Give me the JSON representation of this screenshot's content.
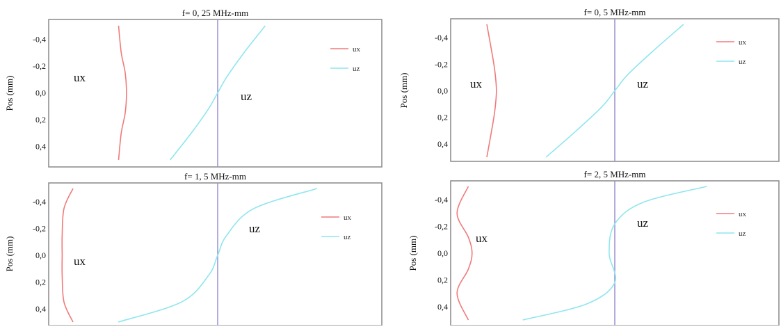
{
  "figure": {
    "colors": {
      "ux": "#f07a7a",
      "uz": "#8ee6ee",
      "zero_line": "#9a8fd0",
      "frame": "#888888"
    }
  },
  "chart_data": [
    {
      "type": "line",
      "title": "f= 0, 25 MHz-mm",
      "xlabel": "",
      "ylabel": "Pos (mm)",
      "ylim": [
        -0.5,
        0.5
      ],
      "y_inverted": true,
      "y_ticks": [
        -0.4,
        -0.2,
        0.0,
        0.2,
        0.4
      ],
      "y_tick_labels": [
        "-0,4",
        "-0,2",
        "0,0",
        "0,2",
        "0,4"
      ],
      "xlim": [
        -1.0,
        1.0
      ],
      "grid": false,
      "legend": "top-right",
      "annotations": [
        "ux",
        "uz"
      ],
      "series": [
        {
          "name": "ux",
          "x": [
            -0.75,
            -0.73,
            -0.7,
            -0.69,
            -0.7,
            -0.73,
            -0.75
          ],
          "y": [
            -0.5,
            -0.3,
            -0.15,
            0.0,
            0.15,
            0.3,
            0.5
          ]
        },
        {
          "name": "uz",
          "x": [
            -0.36,
            -0.2,
            -0.07,
            0.0,
            0.07,
            0.2,
            0.36
          ],
          "y": [
            0.5,
            0.3,
            0.12,
            0.0,
            -0.12,
            -0.3,
            -0.5
          ]
        }
      ]
    },
    {
      "type": "line",
      "title": "f= 0, 5 MHz-mm",
      "xlabel": "",
      "ylabel": "Pos (mm)",
      "ylim": [
        -0.5,
        0.5
      ],
      "y_inverted": true,
      "y_ticks": [
        -0.4,
        -0.2,
        0.0,
        0.2,
        0.4
      ],
      "y_tick_labels": [
        "-0,4",
        "-0,2",
        "0,0",
        "0,2",
        "0,4"
      ],
      "xlim": [
        -1.0,
        1.0
      ],
      "grid": false,
      "legend": "top-right",
      "annotations": [
        "ux",
        "uz"
      ],
      "series": [
        {
          "name": "ux",
          "x": [
            -0.8,
            -0.77,
            -0.75,
            -0.74,
            -0.75,
            -0.77,
            -0.8
          ],
          "y": [
            -0.5,
            -0.3,
            -0.15,
            0.0,
            0.15,
            0.3,
            0.5
          ]
        },
        {
          "name": "uz",
          "x": [
            -0.43,
            -0.24,
            -0.08,
            0.0,
            0.08,
            0.24,
            0.43
          ],
          "y": [
            0.5,
            0.3,
            0.12,
            0.0,
            -0.12,
            -0.3,
            -0.5
          ]
        }
      ]
    },
    {
      "type": "line",
      "title": "f= 1, 5 MHz-mm",
      "xlabel": "",
      "ylabel": "Pos (mm)",
      "ylim": [
        -0.5,
        0.5
      ],
      "y_inverted": true,
      "y_ticks": [
        -0.4,
        -0.2,
        0.0,
        0.2,
        0.4
      ],
      "y_tick_labels": [
        "-0,4",
        "-0,2",
        "0,0",
        "0,2",
        "0,4"
      ],
      "xlim": [
        -1.0,
        1.0
      ],
      "grid": false,
      "legend": "top-right",
      "annotations": [
        "ux",
        "uz"
      ],
      "series": [
        {
          "name": "ux",
          "x": [
            -0.8,
            -0.85,
            -0.86,
            -0.86,
            -0.86,
            -0.85,
            -0.8
          ],
          "y": [
            -0.5,
            -0.35,
            -0.15,
            0.0,
            0.15,
            0.35,
            0.5
          ]
        },
        {
          "name": "uz",
          "x": [
            -0.55,
            -0.2,
            -0.05,
            0.0,
            0.05,
            0.2,
            0.55
          ],
          "y": [
            0.5,
            0.35,
            0.15,
            0.0,
            -0.15,
            -0.35,
            -0.5
          ]
        }
      ]
    },
    {
      "type": "line",
      "title": "f= 2, 5 MHz-mm",
      "xlabel": "",
      "ylabel": "Pos (mm)",
      "ylim": [
        -0.5,
        0.5
      ],
      "y_inverted": true,
      "y_ticks": [
        -0.4,
        -0.2,
        0.0,
        0.2,
        0.4
      ],
      "y_tick_labels": [
        "-0,4",
        "-0,2",
        "0,0",
        "0,2",
        "0,4"
      ],
      "xlim": [
        -1.0,
        1.0
      ],
      "grid": false,
      "legend": "top-right",
      "annotations": [
        "ux",
        "uz"
      ],
      "series": [
        {
          "name": "ux",
          "x": [
            -0.78,
            -0.84,
            -0.78,
            -0.76,
            -0.78,
            -0.84,
            -0.78
          ],
          "y": [
            -0.5,
            -0.3,
            -0.12,
            0.0,
            0.12,
            0.3,
            0.5
          ]
        },
        {
          "name": "uz",
          "x": [
            0.49,
            0.15,
            0.0,
            -0.03,
            0.0,
            -0.15,
            -0.49
          ],
          "y": [
            -0.5,
            -0.38,
            -0.22,
            0.0,
            0.22,
            0.38,
            0.5
          ]
        }
      ]
    }
  ]
}
